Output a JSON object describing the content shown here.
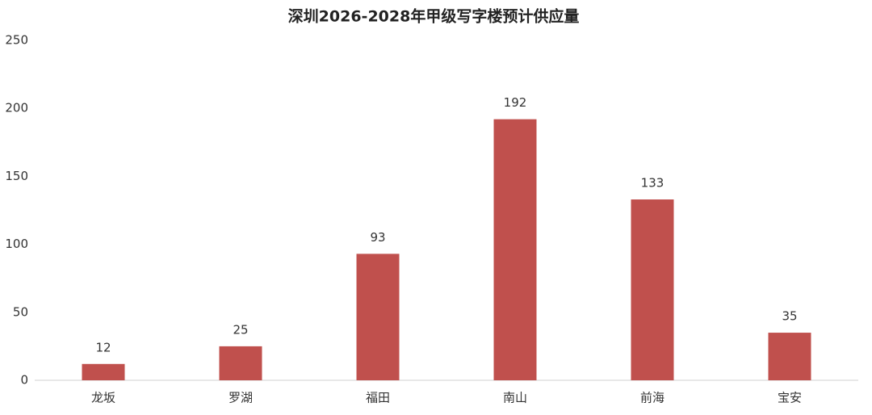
{
  "chart_data": {
    "type": "bar",
    "title": "深圳2026-2028年甲级写字楼预计供应量",
    "categories": [
      "龙坂",
      "罗湖",
      "福田",
      "南山",
      "前海",
      "宝安"
    ],
    "values": [
      12,
      25,
      93,
      192,
      133,
      35
    ],
    "color": "#c0504d",
    "ylim": [
      0,
      250
    ],
    "yticks": [
      0,
      50,
      100,
      150,
      200,
      250
    ],
    "grid": false,
    "data_labels": true
  }
}
